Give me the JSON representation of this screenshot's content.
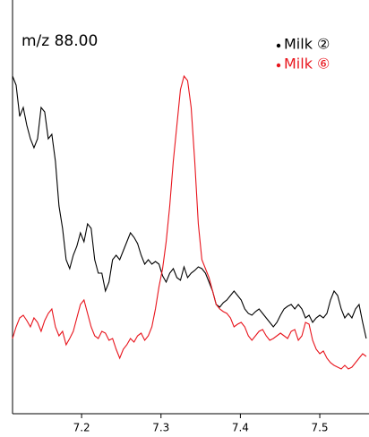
{
  "chart_data": {
    "type": "line",
    "title": "m/z 88.00",
    "x": [
      7.113,
      7.1175,
      7.122,
      7.1265,
      7.131,
      7.1355,
      7.14,
      7.1445,
      7.149,
      7.1535,
      7.158,
      7.1625,
      7.167,
      7.1715,
      7.176,
      7.1805,
      7.185,
      7.1895,
      7.194,
      7.1985,
      7.203,
      7.2075,
      7.212,
      7.2165,
      7.221,
      7.2255,
      7.23,
      7.2345,
      7.239,
      7.2435,
      7.248,
      7.2525,
      7.257,
      7.2615,
      7.266,
      7.2705,
      7.275,
      7.2795,
      7.284,
      7.2885,
      7.293,
      7.2975,
      7.302,
      7.3065,
      7.311,
      7.3155,
      7.32,
      7.3245,
      7.329,
      7.3335,
      7.338,
      7.3425,
      7.347,
      7.3515,
      7.356,
      7.3605,
      7.365,
      7.3695,
      7.374,
      7.3785,
      7.383,
      7.3875,
      7.392,
      7.3965,
      7.401,
      7.4055,
      7.41,
      7.4145,
      7.419,
      7.4235,
      7.428,
      7.4325,
      7.437,
      7.4415,
      7.446,
      7.4505,
      7.455,
      7.4595,
      7.464,
      7.4685,
      7.473,
      7.4775,
      7.482,
      7.4865,
      7.491,
      7.4955,
      7.5,
      7.5045,
      7.509,
      7.5135,
      7.518,
      7.5225,
      7.527,
      7.5315,
      7.536,
      7.5405,
      7.545,
      7.5495,
      7.554,
      7.5585
    ],
    "series": [
      {
        "name": "Milk ②",
        "color": "#000000",
        "values": [
          377,
          367,
          332,
          342,
          322,
          307,
          297,
          307,
          342,
          337,
          307,
          312,
          282,
          232,
          207,
          172,
          162,
          177,
          187,
          202,
          192,
          212,
          207,
          172,
          157,
          157,
          137,
          147,
          172,
          177,
          172,
          182,
          192,
          202,
          197,
          190,
          177,
          167,
          172,
          167,
          170,
          167,
          154,
          147,
          157,
          162,
          152,
          149,
          164,
          152,
          157,
          160,
          164,
          162,
          157,
          147,
          137,
          122,
          119,
          124,
          127,
          132,
          137,
          132,
          127,
          117,
          112,
          110,
          114,
          117,
          112,
          107,
          102,
          97,
          102,
          110,
          117,
          120,
          122,
          117,
          122,
          117,
          107,
          110,
          102,
          107,
          110,
          107,
          112,
          127,
          137,
          132,
          117,
          107,
          112,
          107,
          117,
          122,
          102,
          84
        ]
      },
      {
        "name": "Milk ⑥",
        "color": "#e8141c",
        "values": [
          84,
          97,
          107,
          110,
          104,
          97,
          107,
          102,
          92,
          104,
          112,
          117,
          97,
          87,
          92,
          77,
          84,
          92,
          107,
          122,
          127,
          112,
          97,
          87,
          84,
          92,
          90,
          82,
          84,
          72,
          62,
          72,
          77,
          84,
          80,
          87,
          90,
          82,
          87,
          97,
          117,
          142,
          162,
          192,
          232,
          282,
          322,
          362,
          377,
          372,
          342,
          282,
          212,
          172,
          162,
          152,
          137,
          122,
          117,
          114,
          112,
          107,
          97,
          100,
          102,
          97,
          87,
          82,
          87,
          92,
          94,
          87,
          82,
          84,
          87,
          90,
          87,
          84,
          92,
          94,
          82,
          87,
          102,
          100,
          82,
          72,
          67,
          70,
          62,
          57,
          54,
          52,
          50,
          54,
          50,
          52,
          57,
          62,
          67,
          64
        ]
      }
    ],
    "xlim": [
      7.113,
      7.562
    ],
    "xticks": [
      7.2,
      7.3,
      7.4,
      7.5
    ],
    "ylim": [
      0,
      462
    ]
  }
}
